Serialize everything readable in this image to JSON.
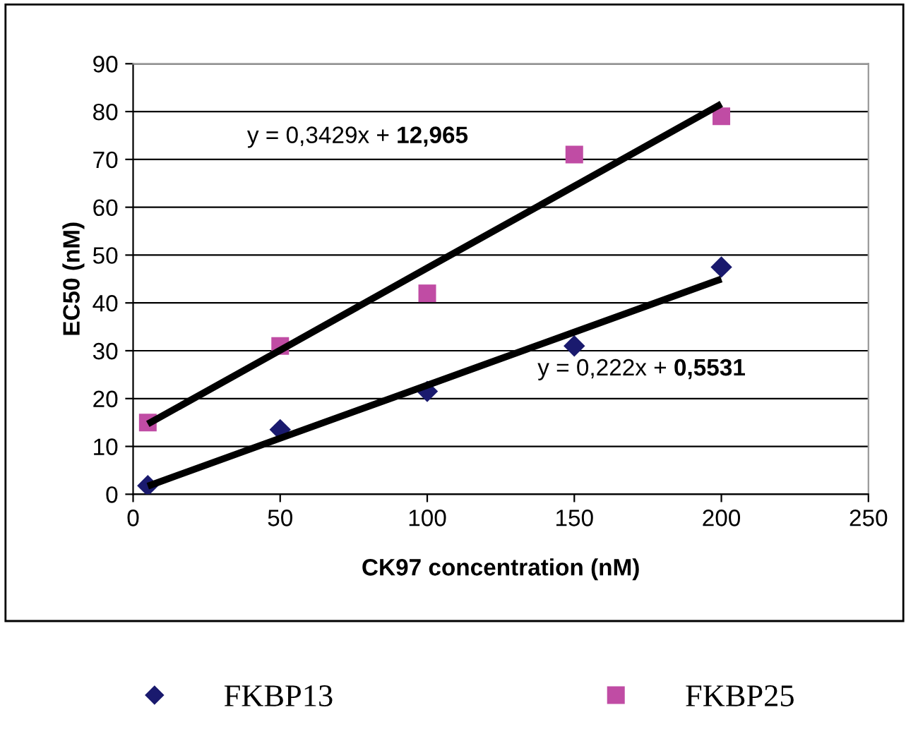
{
  "chart_data": {
    "type": "scatter",
    "xlabel": "CK97 concentration (nM)",
    "ylabel": "EC50 (nM)",
    "x": [
      5,
      50,
      100,
      150,
      200
    ],
    "series": [
      {
        "name": "FKBP13",
        "color": "#1a1a6e",
        "marker": "diamond",
        "values": [
          1.8,
          13.5,
          21.5,
          31,
          47.5
        ]
      },
      {
        "name": "FKBP25",
        "color": "#c04ca4",
        "marker": "square",
        "values": [
          15,
          31,
          42,
          71,
          79
        ]
      },
      {
        "type": "line",
        "color": "#000000",
        "marker": "none",
        "values": [
          14.7,
          30.1,
          47.3,
          64.4,
          81.6
        ]
      },
      {
        "type": "line",
        "color": "#000000",
        "marker": "none",
        "values": [
          1.7,
          11.7,
          22.8,
          33.9,
          45
        ]
      }
    ],
    "annotations": [
      "y = 0,3429x + 12,965",
      "y = 0,222x + 0,5531"
    ],
    "xlim": [
      0,
      250
    ],
    "xticks": [
      0,
      50,
      100,
      150,
      200,
      250
    ],
    "ylim": [
      0,
      90
    ],
    "yticks": [
      0,
      10,
      20,
      30,
      40,
      50,
      60,
      70,
      80,
      90
    ],
    "grid": "y",
    "legend": "bottom"
  }
}
